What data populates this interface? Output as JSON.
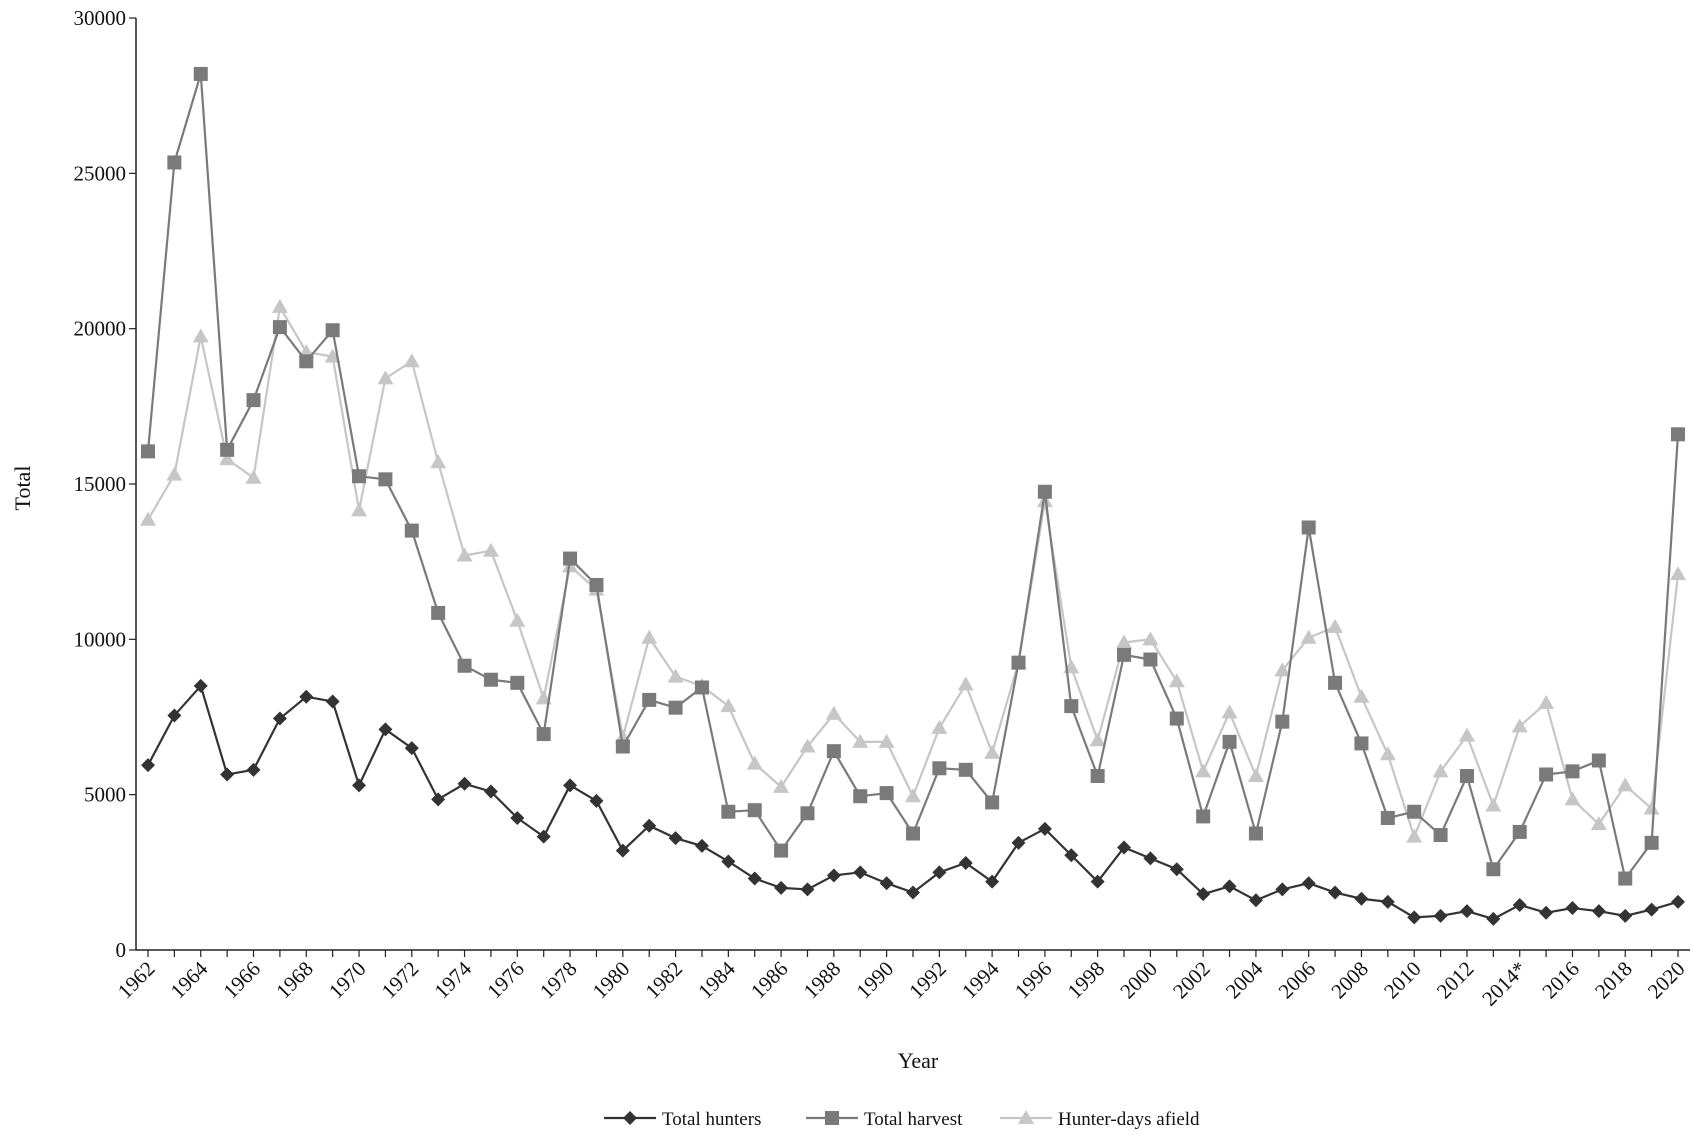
{
  "chart_data": {
    "type": "line",
    "title": "",
    "xlabel": "Year",
    "ylabel": "Total",
    "ylim": [
      0,
      30000
    ],
    "yticks": [
      0,
      5000,
      10000,
      15000,
      20000,
      25000,
      30000
    ],
    "grid": false,
    "legend_position": "bottom",
    "x": [
      1962,
      1963,
      1964,
      1965,
      1966,
      1967,
      1968,
      1969,
      1970,
      1971,
      1972,
      1973,
      1974,
      1975,
      1976,
      1977,
      1978,
      1979,
      1980,
      1981,
      1982,
      1983,
      1984,
      1985,
      1986,
      1987,
      1988,
      1989,
      1990,
      1991,
      1992,
      1993,
      1994,
      1995,
      1996,
      1997,
      1998,
      1999,
      2000,
      2001,
      2002,
      2003,
      2004,
      2005,
      2006,
      2007,
      2008,
      2009,
      2010,
      2011,
      2012,
      2013,
      2014,
      2015,
      2016,
      2017,
      2018,
      2019,
      2020
    ],
    "xtick_labels": [
      "1962",
      "1964",
      "1966",
      "1968",
      "1970",
      "1972",
      "1974",
      "1976",
      "1978",
      "1980",
      "1982",
      "1984",
      "1986",
      "1988",
      "1990",
      "1992",
      "1994",
      "1996",
      "1998",
      "2000",
      "2002",
      "2004",
      "2006",
      "2008",
      "2010",
      "2012",
      "2014*",
      "2016",
      "2018",
      "2020"
    ],
    "series": [
      {
        "name": "Total hunters",
        "color": "#333333",
        "marker": "diamond",
        "values": [
          5950,
          7550,
          8500,
          5650,
          5800,
          7450,
          8150,
          8000,
          5300,
          7100,
          6500,
          4850,
          5350,
          5100,
          4250,
          3650,
          5300,
          4800,
          3200,
          4000,
          3600,
          3350,
          2850,
          2300,
          2000,
          1950,
          2400,
          2500,
          2150,
          1850,
          2500,
          2800,
          2200,
          3450,
          3900,
          3050,
          2200,
          3300,
          2950,
          2600,
          1800,
          2050,
          1600,
          1950,
          2150,
          1850,
          1650,
          1550,
          1050,
          1100,
          1250,
          1000,
          1450,
          1200,
          1350,
          1250,
          1100,
          1300,
          1550
        ]
      },
      {
        "name": "Total harvest",
        "color": "#7a7a7a",
        "marker": "square",
        "values": [
          16050,
          25350,
          28200,
          16100,
          17700,
          20050,
          18950,
          19950,
          15250,
          15150,
          13500,
          10850,
          9150,
          8700,
          8600,
          6950,
          12600,
          11750,
          6550,
          8050,
          7800,
          8450,
          4450,
          4500,
          3200,
          4400,
          6400,
          4950,
          5050,
          3750,
          5850,
          5800,
          4750,
          9250,
          14750,
          7850,
          5600,
          9500,
          9350,
          7450,
          4300,
          6700,
          3750,
          7350,
          13600,
          8600,
          6650,
          4250,
          4450,
          3700,
          5600,
          2600,
          3800,
          5650,
          5750,
          6100,
          2300,
          3450,
          16600
        ]
      },
      {
        "name": "Hunter-days afield",
        "color": "#c6c6c6",
        "marker": "triangle",
        "values": [
          13850,
          15300,
          19750,
          15800,
          15200,
          20700,
          19250,
          19100,
          14150,
          18400,
          18950,
          15700,
          12700,
          12850,
          10600,
          8100,
          12350,
          11600,
          6850,
          10050,
          8800,
          8500,
          7850,
          6000,
          5250,
          6550,
          7600,
          6700,
          6700,
          4950,
          7150,
          8550,
          6350,
          9250,
          14450,
          9100,
          6750,
          9900,
          10000,
          8650,
          5750,
          7650,
          5600,
          9000,
          10050,
          10400,
          8150,
          6300,
          3650,
          5750,
          6900,
          4650,
          7200,
          7950,
          4850,
          4050,
          5300,
          4550,
          12100
        ]
      }
    ]
  }
}
